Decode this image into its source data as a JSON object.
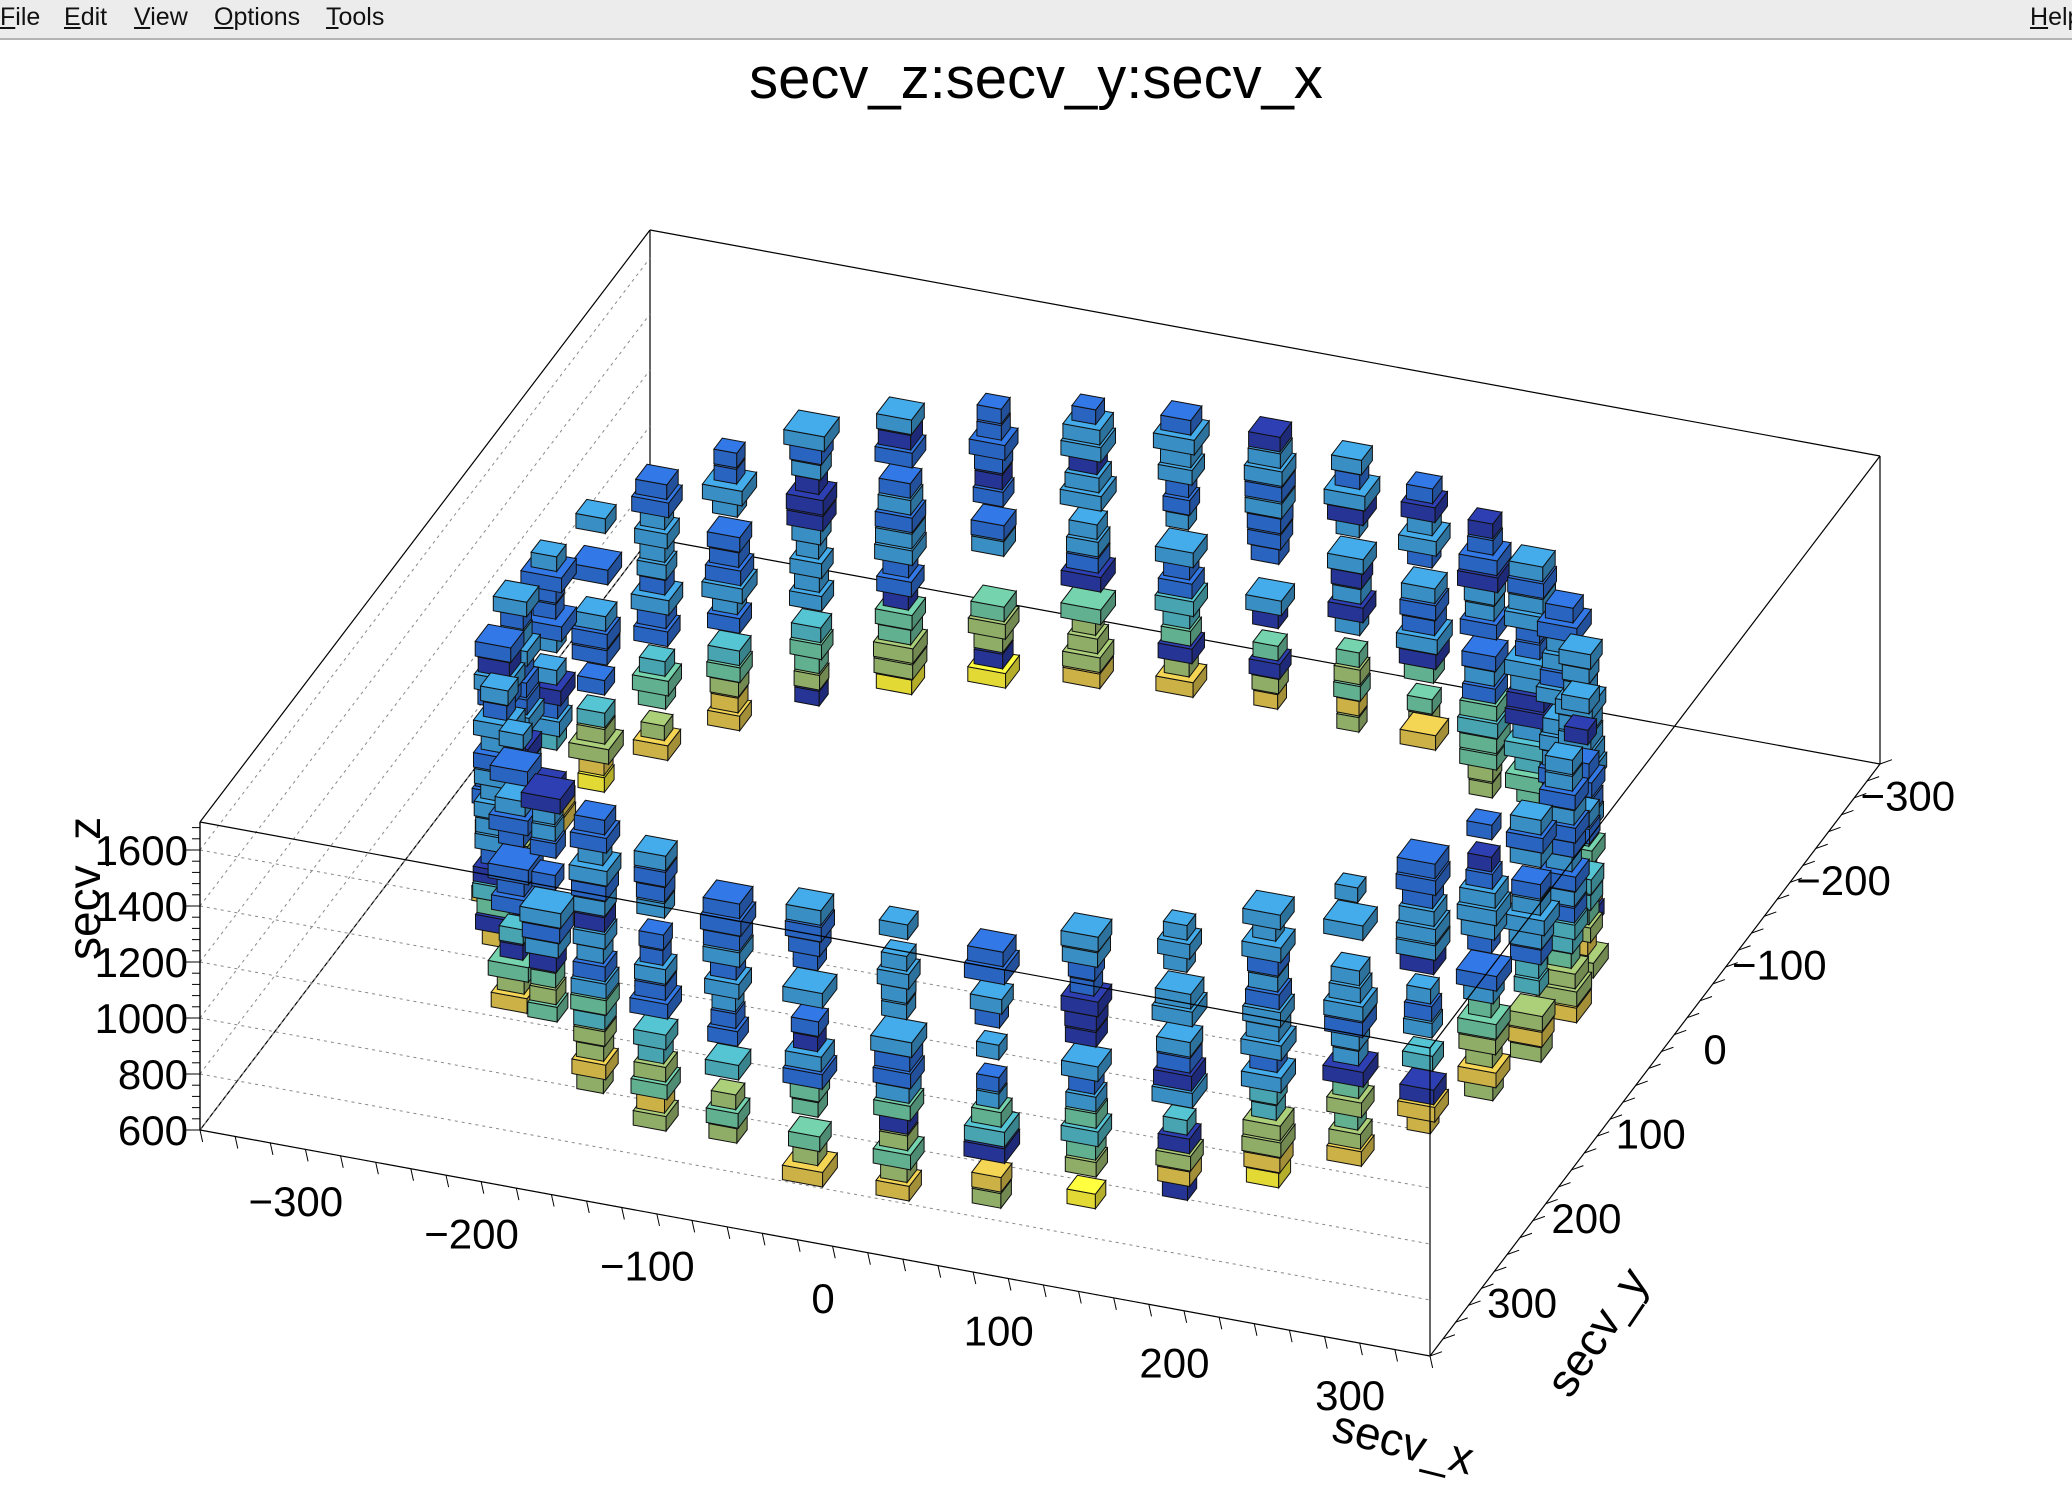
{
  "menubar": {
    "items": [
      {
        "label": "File",
        "accel": "F",
        "rest": "ile"
      },
      {
        "label": "Edit",
        "accel": "E",
        "rest": "dit"
      },
      {
        "label": "View",
        "accel": "V",
        "rest": "iew"
      },
      {
        "label": "Options",
        "accel": "O",
        "rest": "ptions"
      },
      {
        "label": "Tools",
        "accel": "T",
        "rest": "ools"
      }
    ],
    "help": {
      "label": "Help",
      "accel": "H",
      "rest": "elp"
    }
  },
  "chart_data": {
    "type": "3d-box",
    "title": "secv_z:secv_y:secv_x",
    "xlabel": "secv_x",
    "ylabel": "secv_y",
    "zlabel": "secv_z",
    "xlim": [
      -350,
      350
    ],
    "ylim": [
      -350,
      350
    ],
    "zlim": [
      600,
      1700
    ],
    "x_ticks": [
      "−300",
      "−200",
      "−100",
      "0",
      "100",
      "200",
      "300"
    ],
    "y_ticks": [
      "−300",
      "−200",
      "−100",
      "0",
      "100",
      "200",
      "300"
    ],
    "z_ticks": [
      "600",
      "800",
      "1000",
      "1200",
      "1400",
      "1600"
    ],
    "description_points": {
      "ring_radius": 290,
      "z_range": [
        650,
        1650
      ],
      "staves": 36
    },
    "palette": [
      "#2a3aa6",
      "#2f6fd6",
      "#3f9fd9",
      "#4fb6c4",
      "#6cc3a0",
      "#9fc071",
      "#e3c64e",
      "#fbf13a"
    ]
  }
}
